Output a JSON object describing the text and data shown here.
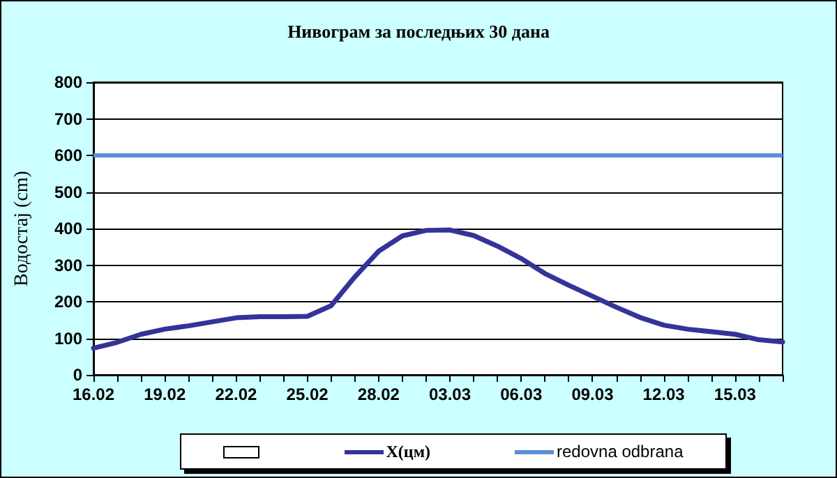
{
  "chart_data": {
    "type": "line",
    "title": "Нивограм за последњих 30 дана",
    "ylabel": "Водостај (cm)",
    "categories": [
      "16.02",
      null,
      null,
      "19.02",
      null,
      null,
      "22.02",
      null,
      null,
      "25.02",
      null,
      null,
      "28.02",
      null,
      null,
      "03.03",
      null,
      null,
      "06.03",
      null,
      null,
      "09.03",
      null,
      null,
      "12.03",
      null,
      null,
      "15.03",
      null,
      null
    ],
    "series": [
      {
        "name": "X(цм)",
        "color": "#333399",
        "values": [
          73,
          89,
          111,
          125,
          134,
          145,
          156,
          159,
          159,
          160,
          189,
          268,
          338,
          380,
          395,
          396,
          381,
          352,
          318,
          277,
          245,
          215,
          185,
          157,
          136,
          125,
          118,
          111,
          96,
          90
        ]
      }
    ],
    "ref_lines": [
      {
        "axis": "y",
        "value": 600,
        "label": "redovna odbrana",
        "color": "#5b8fd6"
      }
    ],
    "ylim": [
      0,
      800
    ],
    "yticks": [
      0,
      100,
      200,
      300,
      400,
      500,
      600,
      700,
      800
    ],
    "grid": "y",
    "legend": "bottom",
    "marker": "none",
    "line_style": "solid"
  }
}
